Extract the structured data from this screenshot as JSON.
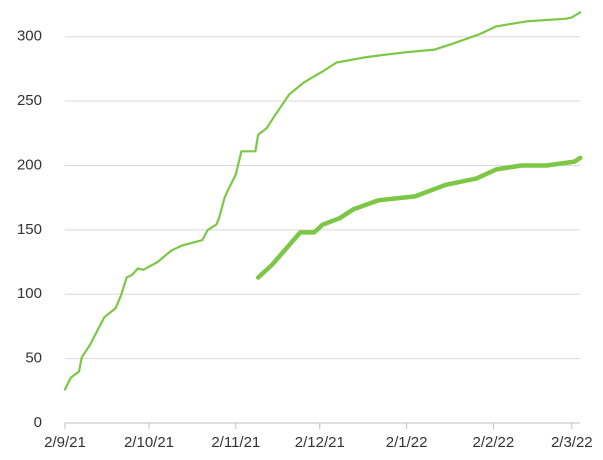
{
  "chart_data": {
    "type": "line",
    "xlim": [
      "2/9/21",
      "6/3/22"
    ],
    "xticks": [
      "2/9/21",
      "2/10/21",
      "2/11/21",
      "2/12/21",
      "2/1/22",
      "2/2/22",
      "2/3/22"
    ],
    "ylim": [
      0,
      320
    ],
    "yticks": [
      0,
      50,
      100,
      150,
      200,
      250,
      300
    ],
    "grid": true,
    "series": [
      {
        "color": "#7cc846",
        "x": [
          "2/9/21",
          "4/9/21",
          "7/9/21",
          "8/9/21",
          "11/9/21",
          "16/9/21",
          "20/9/21",
          "22/9/21",
          "24/9/21",
          "26/9/21",
          "28/9/21",
          "30/9/21",
          "5/10/21",
          "10/10/21",
          "14/10/21",
          "21/10/21",
          "23/10/21",
          "26/10/21",
          "27/10/21",
          "29/10/21",
          "30/10/21",
          "2/11/21",
          "4/11/21",
          "9/11/21",
          "10/11/21",
          "13/11/21",
          "16/11/21",
          "21/11/21",
          "26/11/21",
          "29/11/21",
          "3/12/21",
          "8/12/21",
          "18/12/21",
          "25/12/21",
          "2/1/22",
          "12/1/22",
          "19/1/22",
          "28/1/22",
          "3/2/22",
          "14/2/22",
          "28/2/22",
          "2/3/22",
          "5/3/22"
        ],
        "values": [
          26,
          35,
          40,
          51,
          61,
          82,
          89,
          99,
          113,
          115,
          120,
          119,
          125,
          134,
          138,
          142,
          150,
          154,
          159,
          175,
          180,
          193,
          211,
          211,
          224,
          229,
          239,
          255,
          264,
          268,
          273,
          280,
          284,
          286,
          288,
          290,
          295,
          302,
          308,
          312,
          314,
          315,
          319
        ]
      },
      {
        "color": "#7cc846",
        "x": [
          "10/11/21",
          "15/11/21",
          "21/11/21",
          "25/11/21",
          "30/11/21",
          "3/12/21",
          "9/12/21",
          "14/12/21",
          "23/12/21",
          "5/1/22",
          "16/1/22",
          "27/1/22",
          "3/2/22",
          "12/2/22",
          "21/2/22",
          "3/3/22",
          "5/3/22"
        ],
        "values": [
          113,
          123,
          138,
          148,
          148,
          154,
          159,
          166,
          173,
          176,
          185,
          190,
          197,
          200,
          200,
          203,
          206
        ]
      }
    ]
  }
}
